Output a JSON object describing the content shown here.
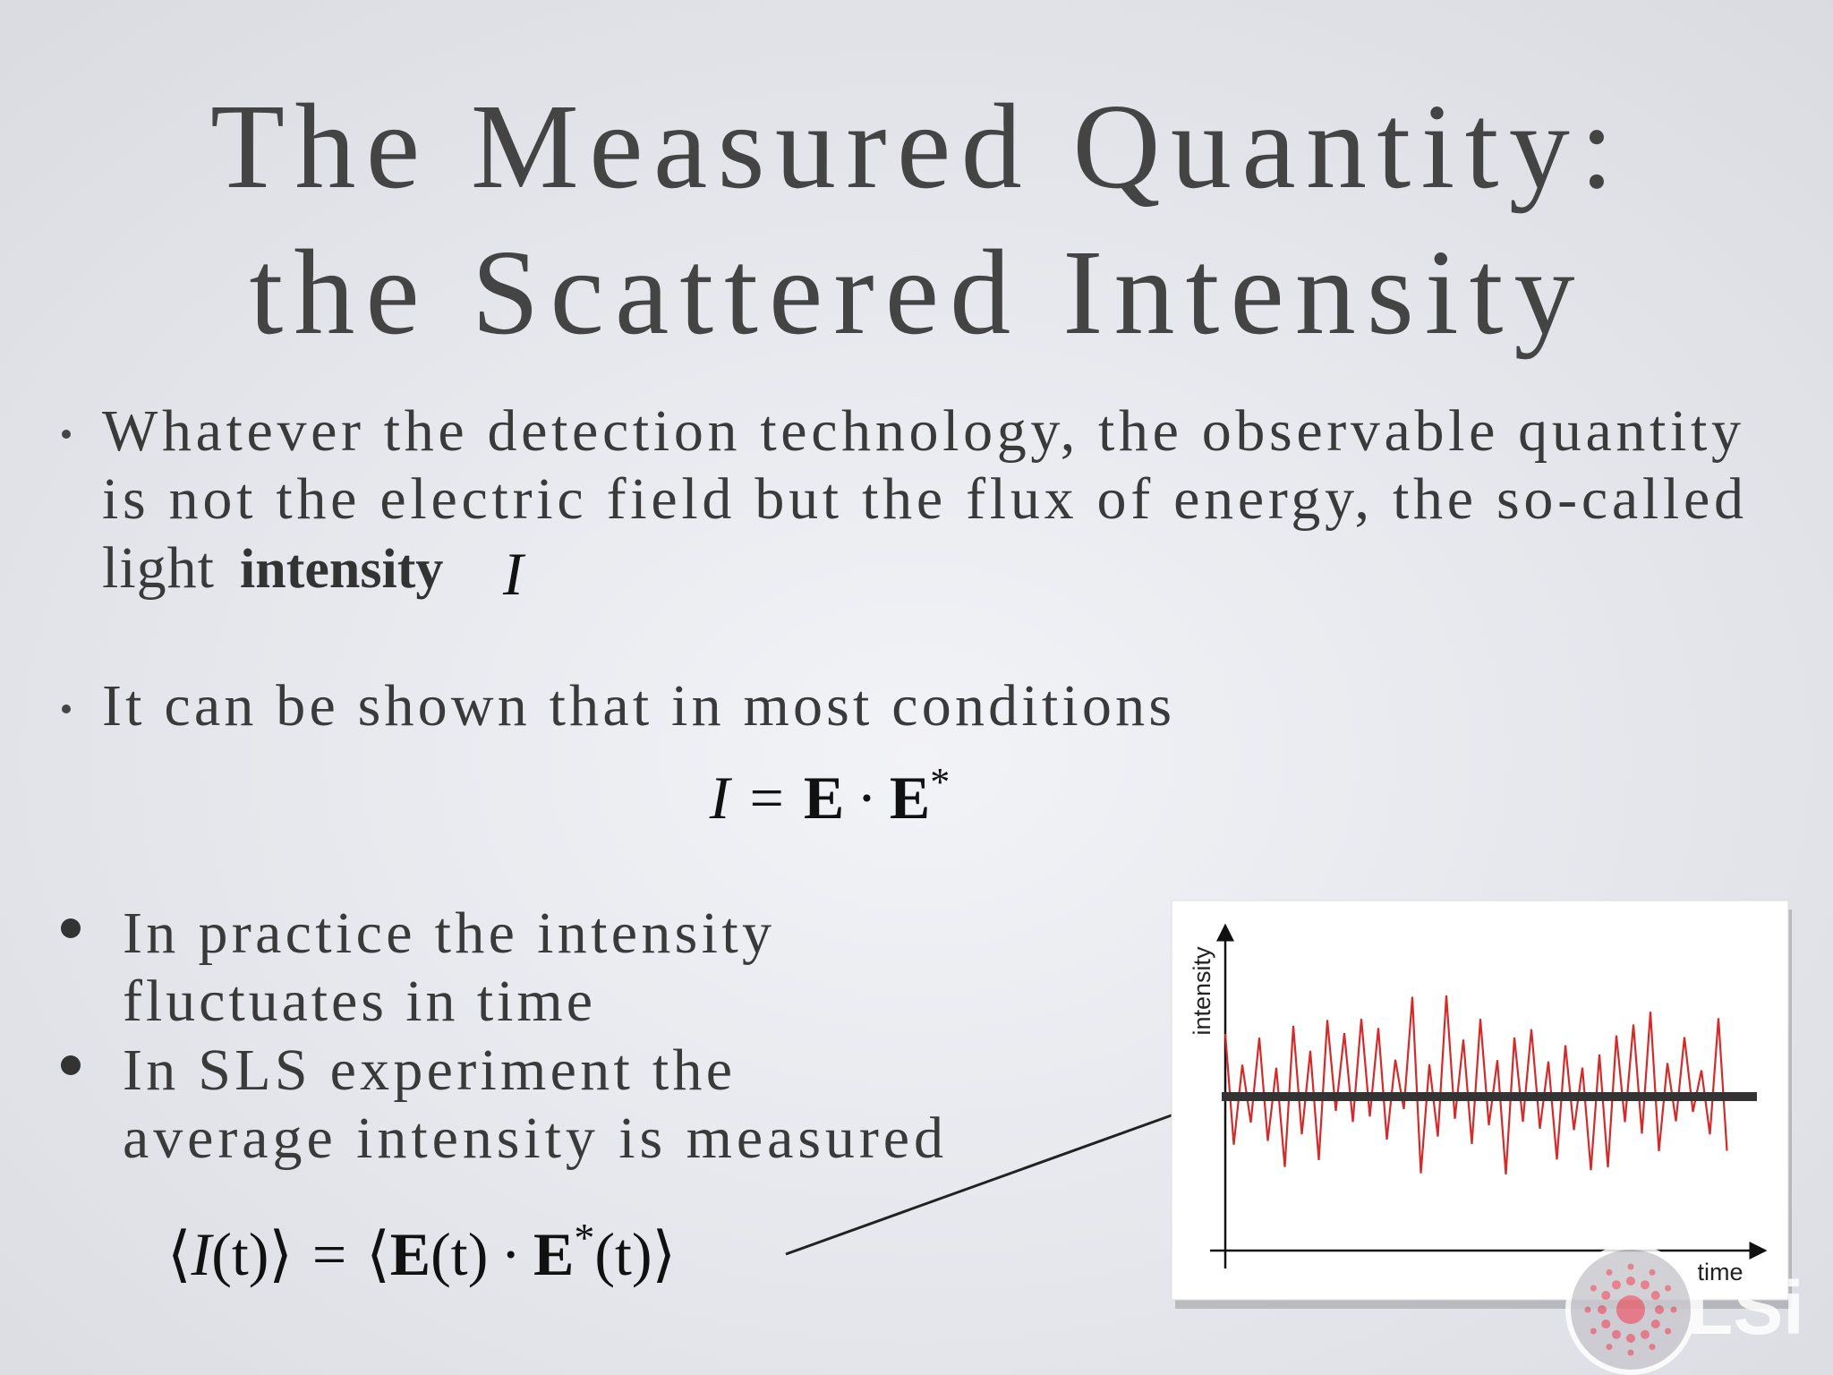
{
  "title": {
    "lines": [
      "The Measured Quantity:",
      "the Scattered Intensity"
    ]
  },
  "bullets": [
    {
      "lines": [
        "Whatever the detection technology, the observable quantity",
        "is not the electric field but the flux of energy, the so-called",
        "light"
      ],
      "bold": "intensity",
      "symbol": "I"
    },
    {
      "lines": [
        "It can be shown that in most conditions"
      ],
      "equation": [
        "I",
        "=",
        "E",
        "·",
        "E",
        "*"
      ]
    },
    {
      "lines": [
        "In practice the intensity",
        "fluctuates in time"
      ]
    },
    {
      "lines": [
        "In SLS experiment the",
        "average intensity is measured"
      ],
      "equation": [
        "⟨",
        "I",
        "(t)⟩",
        "=",
        "⟨",
        "E",
        "(t)",
        "·",
        "E",
        "*",
        "(t)⟩"
      ]
    }
  ],
  "figure": {
    "y_label": "intensity",
    "x_label": "time"
  },
  "logo": {
    "text": "LSi"
  }
}
